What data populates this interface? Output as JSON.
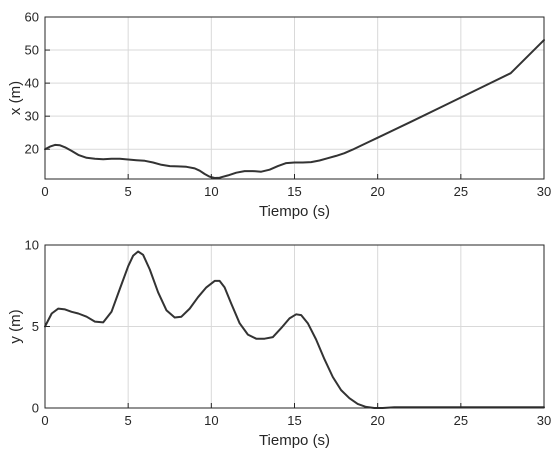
{
  "chart_data": [
    {
      "type": "line",
      "xlabel": "Tiempo (s)",
      "ylabel": "x (m)",
      "xlim": [
        0,
        30
      ],
      "ylim": [
        11,
        60
      ],
      "xticks": [
        0,
        5,
        10,
        15,
        20,
        25,
        30
      ],
      "yticks": [
        20,
        30,
        40,
        50,
        60
      ],
      "grid": true,
      "line_color": "#333333",
      "series": [
        {
          "x": [
            0,
            0.3,
            0.6,
            0.9,
            1.2,
            1.6,
            2,
            2.5,
            3,
            3.5,
            4,
            4.5,
            5,
            5.5,
            6,
            6.5,
            7,
            7.5,
            8,
            8.5,
            9,
            9.3,
            9.6,
            9.9,
            10.2,
            10.5,
            11,
            11.5,
            12,
            12.5,
            13,
            13.5,
            14,
            14.5,
            15,
            15.5,
            16,
            16.5,
            17,
            17.5,
            18,
            18.5,
            19,
            19.5,
            20,
            22,
            24,
            26,
            28,
            30
          ],
          "y": [
            20,
            20.8,
            21.3,
            21.2,
            20.6,
            19.5,
            18.3,
            17.4,
            17.1,
            17.0,
            17.1,
            17.1,
            16.9,
            16.7,
            16.5,
            16.0,
            15.3,
            14.9,
            14.8,
            14.7,
            14.2,
            13.5,
            12.5,
            11.7,
            11.3,
            11.4,
            12.1,
            12.9,
            13.4,
            13.4,
            13.2,
            13.8,
            14.9,
            15.8,
            16.0,
            16.0,
            16.1,
            16.6,
            17.3,
            18.0,
            18.8,
            19.9,
            21.1,
            22.3,
            23.5,
            28.3,
            33.2,
            38.1,
            43.0,
            53.0
          ]
        }
      ]
    },
    {
      "type": "line",
      "xlabel": "Tiempo (s)",
      "ylabel": "y (m)",
      "xlim": [
        0,
        30
      ],
      "ylim": [
        0,
        10
      ],
      "xticks": [
        0,
        5,
        10,
        15,
        20,
        25,
        30
      ],
      "yticks": [
        0,
        5,
        10
      ],
      "grid": true,
      "line_color": "#333333",
      "series": [
        {
          "x": [
            0,
            0.4,
            0.8,
            1.2,
            1.6,
            2,
            2.5,
            3,
            3.5,
            4,
            4.5,
            5,
            5.3,
            5.6,
            5.9,
            6.3,
            6.8,
            7.3,
            7.8,
            8.2,
            8.7,
            9.2,
            9.7,
            10.2,
            10.5,
            10.8,
            11.2,
            11.7,
            12.2,
            12.7,
            13.2,
            13.7,
            14.2,
            14.7,
            15.1,
            15.4,
            15.8,
            16.3,
            16.8,
            17.3,
            17.8,
            18.3,
            18.8,
            19.3,
            19.8,
            20.3,
            21,
            25,
            30
          ],
          "y": [
            5.0,
            5.8,
            6.1,
            6.05,
            5.9,
            5.8,
            5.6,
            5.3,
            5.25,
            5.9,
            7.3,
            8.7,
            9.35,
            9.6,
            9.4,
            8.5,
            7.1,
            6.0,
            5.55,
            5.6,
            6.1,
            6.8,
            7.4,
            7.8,
            7.8,
            7.4,
            6.4,
            5.2,
            4.5,
            4.25,
            4.25,
            4.35,
            4.9,
            5.5,
            5.75,
            5.7,
            5.2,
            4.2,
            3.0,
            1.9,
            1.1,
            0.6,
            0.25,
            0.07,
            0.0,
            0.0,
            0.05,
            0.05,
            0.05
          ]
        }
      ]
    }
  ]
}
